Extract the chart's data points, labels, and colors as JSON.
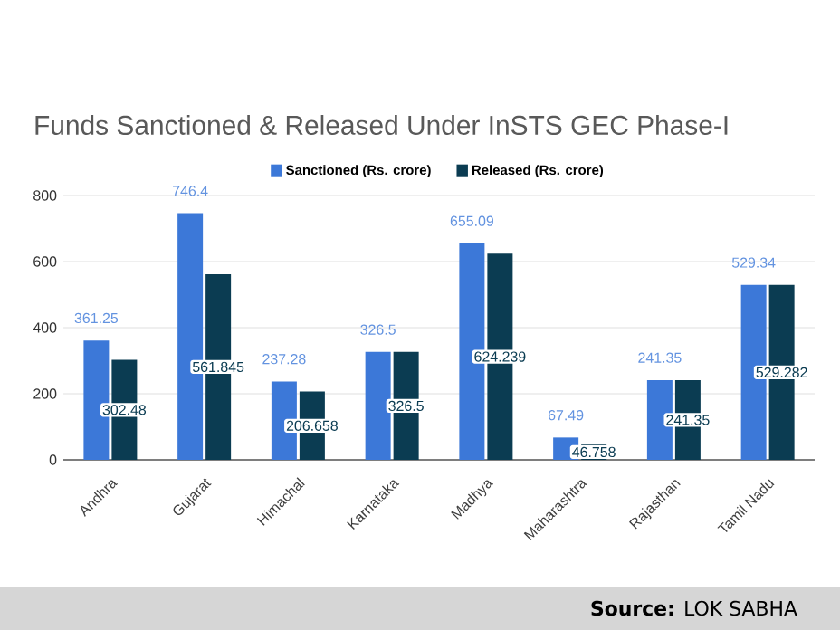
{
  "chart_data": {
    "type": "bar",
    "title": "Funds Sanctioned & Released Under InSTS GEC Phase-I",
    "categories": [
      "Andhra",
      "Gujarat",
      "Himachal",
      "Karnataka",
      "Madhya",
      "Maharashtra",
      "Rajasthan",
      "Tamil Nadu"
    ],
    "series": [
      {
        "name": "Sanctioned (Rs. crore)",
        "color": "#3c78d8",
        "values": [
          361.25,
          746.4,
          237.28,
          326.5,
          655.09,
          67.49,
          241.35,
          529.34
        ]
      },
      {
        "name": "Released (Rs. crore)",
        "color": "#0b3c52",
        "values": [
          302.48,
          561.845,
          206.658,
          326.5,
          624.239,
          46.758,
          241.35,
          529.282
        ]
      }
    ],
    "ylim": [
      0,
      800
    ],
    "yticks": [
      0,
      200,
      400,
      600,
      800
    ],
    "grid": "y",
    "legend": "top",
    "data_labels": true,
    "annotations": [
      "**Source:** LOK SABHA"
    ]
  }
}
